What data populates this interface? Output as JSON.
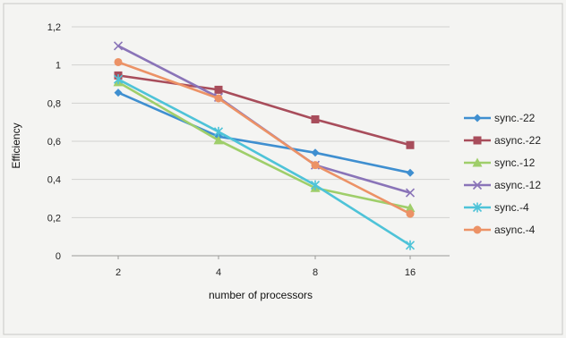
{
  "chart_data": {
    "type": "line",
    "title": "",
    "xlabel": "number of processors",
    "ylabel": "Efficiency",
    "categories": [
      "2",
      "4",
      "8",
      "16"
    ],
    "ylim": [
      0,
      1.2
    ],
    "yticks": [
      "0",
      "0,2",
      "0,4",
      "0,6",
      "0,8",
      "1",
      "1,2"
    ],
    "grid": "horizontal",
    "legend_position": "right",
    "series": [
      {
        "name": "sync.-22",
        "color": "#3f8fd0",
        "marker": "diamond",
        "values": [
          0.855,
          0.625,
          0.54,
          0.435
        ]
      },
      {
        "name": "async.-22",
        "color": "#a84d5b",
        "marker": "square",
        "values": [
          0.945,
          0.87,
          0.715,
          0.58
        ]
      },
      {
        "name": "sync.-12",
        "color": "#9fce6a",
        "marker": "triangle",
        "values": [
          0.91,
          0.605,
          0.355,
          0.25
        ]
      },
      {
        "name": "async.-12",
        "color": "#8a74b8",
        "marker": "x",
        "values": [
          1.1,
          0.83,
          0.475,
          0.33
        ]
      },
      {
        "name": "sync.-4",
        "color": "#4ec3d8",
        "marker": "star",
        "values": [
          0.925,
          0.65,
          0.37,
          0.055
        ]
      },
      {
        "name": "async.-4",
        "color": "#ec9266",
        "marker": "circle",
        "values": [
          1.015,
          0.825,
          0.475,
          0.22
        ]
      }
    ]
  }
}
